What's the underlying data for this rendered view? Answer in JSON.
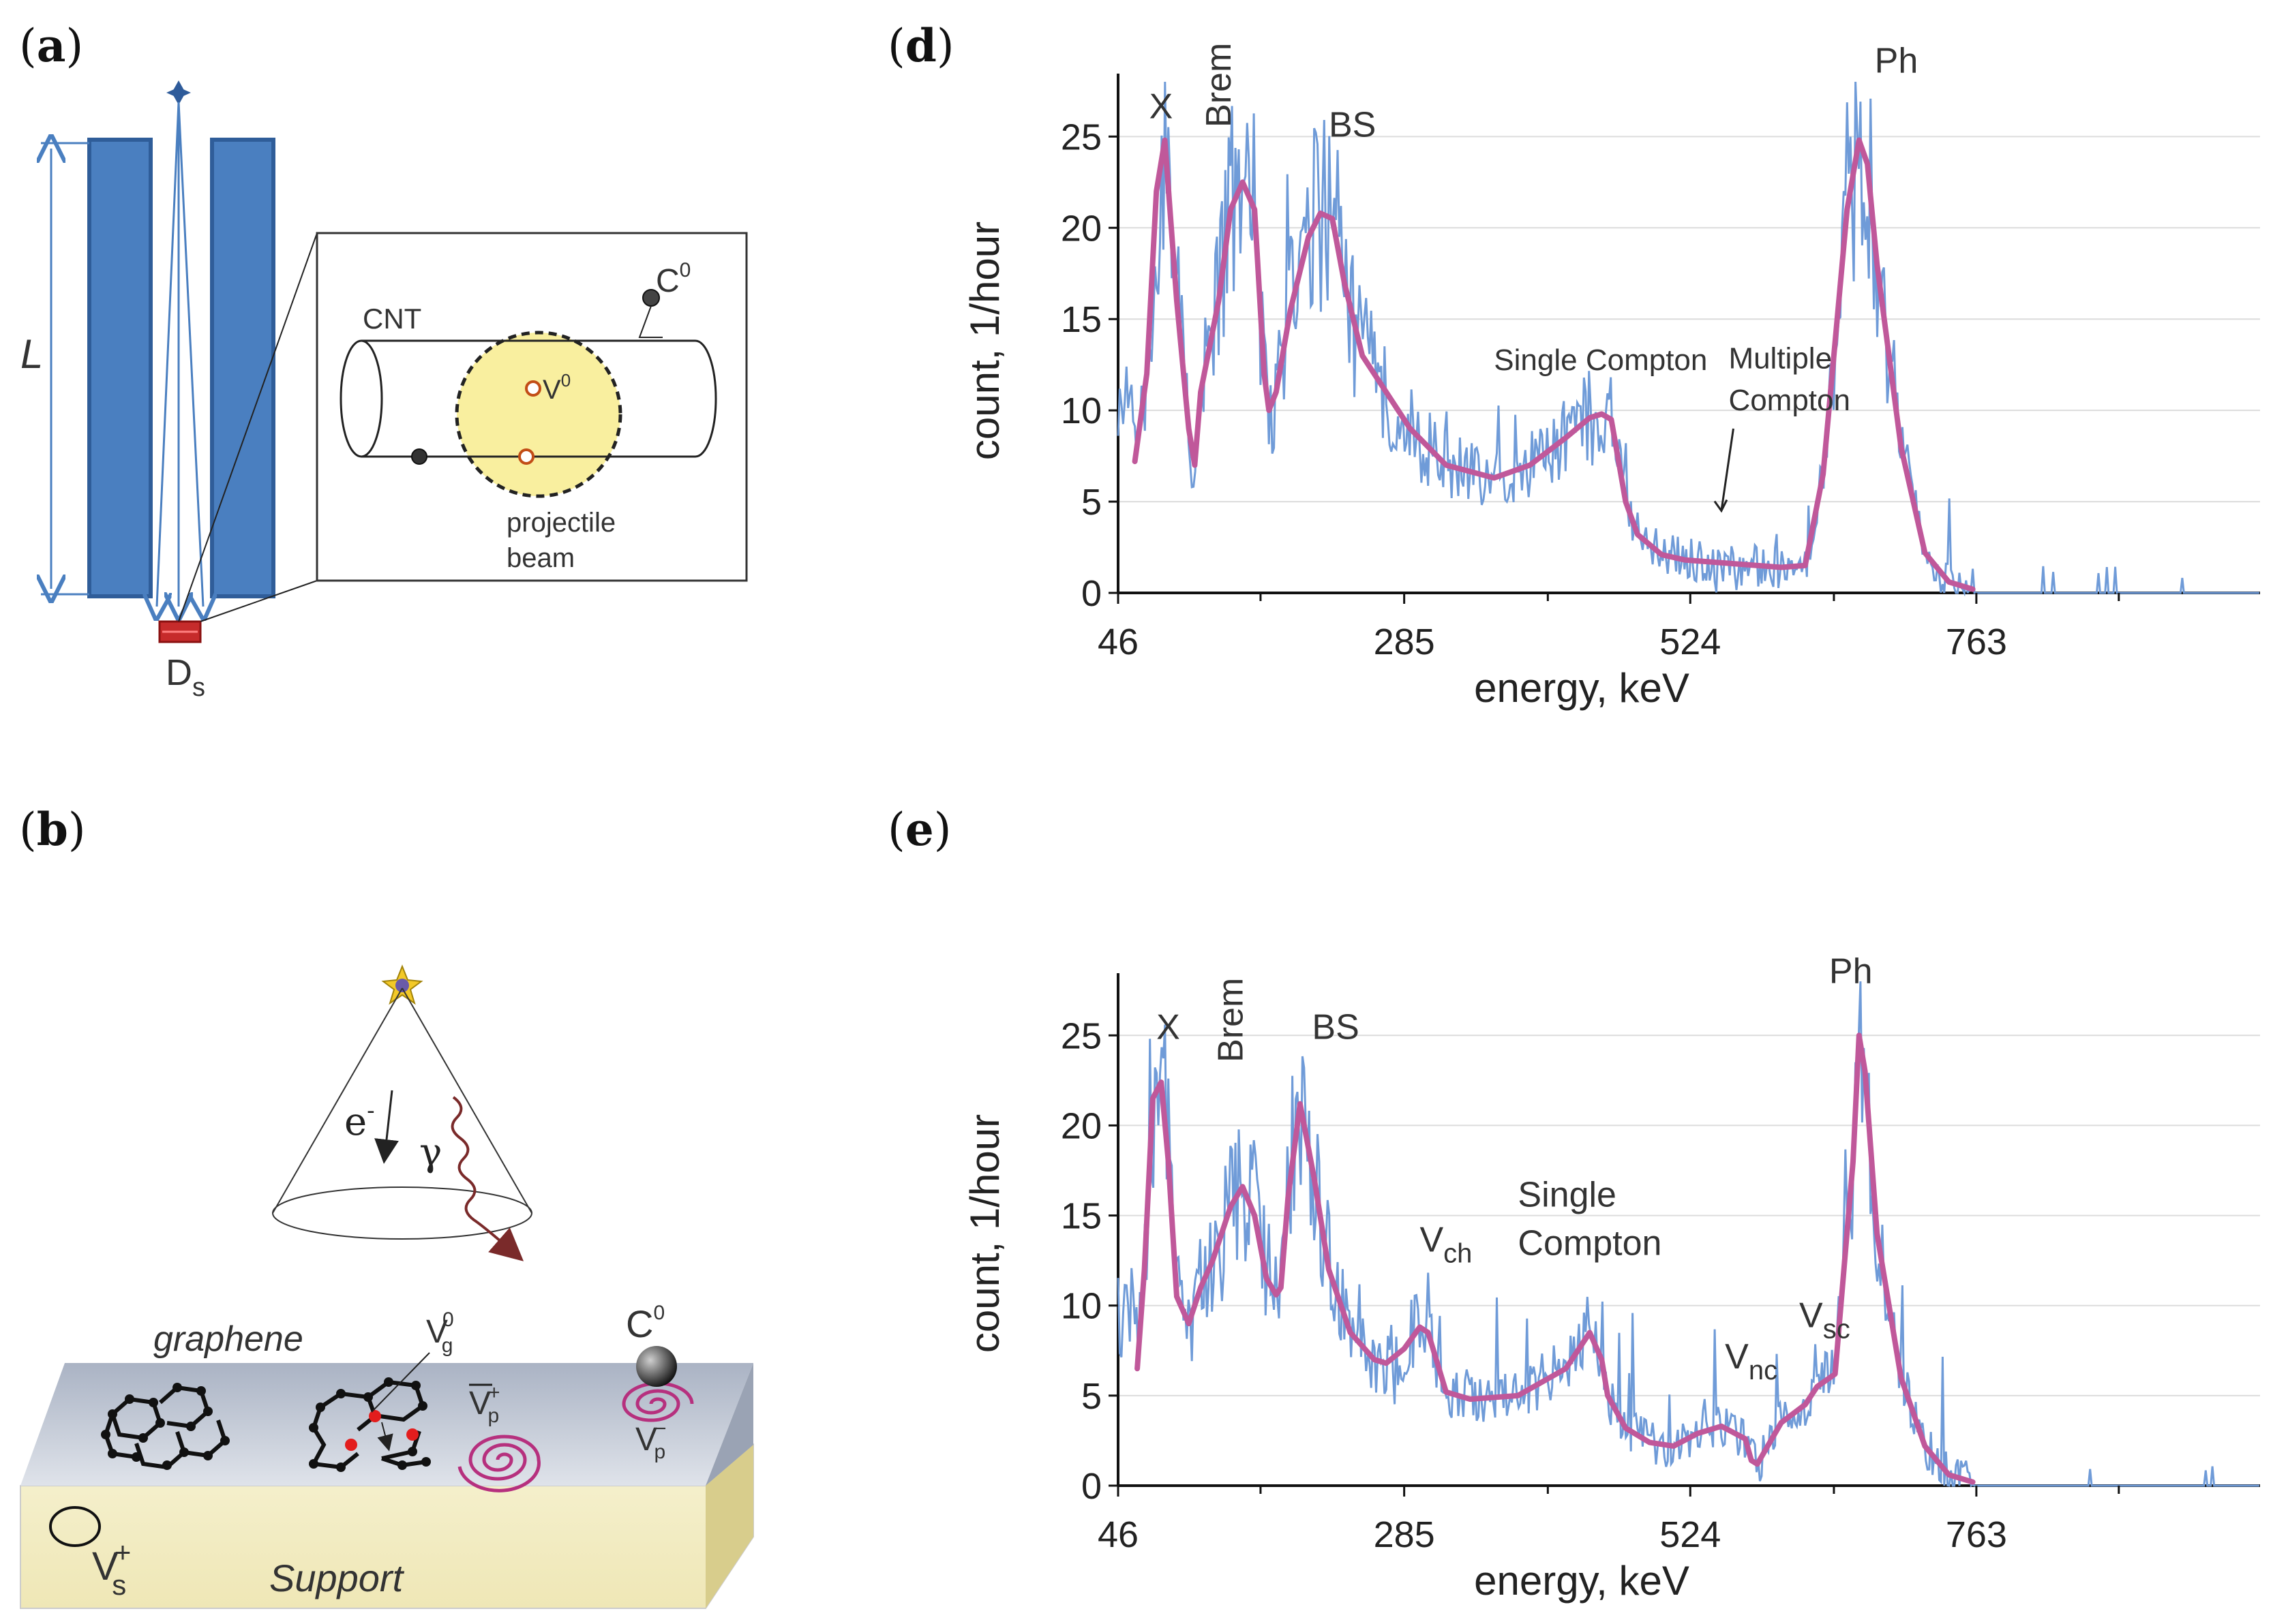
{
  "panels": {
    "a": {
      "letter": "a",
      "L_label": "L",
      "detector_label": "D",
      "detector_sub": "s",
      "cnt_label": "CNT",
      "c0_label": "C",
      "c0_sup": "0",
      "v0_label": "V",
      "v0_sup": "0",
      "beam_line1": "projectile",
      "beam_line2": "beam"
    },
    "b": {
      "letter": "b",
      "electron_label": "e",
      "electron_sup": "-",
      "gamma_label": "γ",
      "graphene_label": "graphene",
      "support_label": "Support",
      "vg_label": "V",
      "vg_sub": "g",
      "vg_sup": "0",
      "vp_plus_label": "V",
      "vp_plus_sub": "p",
      "vp_plus_sup": "+",
      "vp_minus_label": "V",
      "vp_minus_sub": "p",
      "vp_minus_sup": "−",
      "c0_label": "C",
      "c0_sup": "0",
      "vs_label": "V",
      "vs_sub": "s",
      "vs_sup": "+"
    },
    "d": {
      "letter": "d"
    },
    "e": {
      "letter": "e"
    }
  },
  "chart_data": [
    {
      "id": "d",
      "type": "line",
      "xlabel": "energy, keV",
      "ylabel": "count, 1/hour",
      "xlim": [
        46,
        1000
      ],
      "ylim": [
        0,
        28
      ],
      "xticks": [
        46,
        285,
        524,
        763
      ],
      "yticks": [
        0,
        5,
        10,
        15,
        20,
        25
      ],
      "grid": true,
      "series": [
        {
          "name": "raw spectrum",
          "color": "#6f9bd8",
          "style": "noisy"
        },
        {
          "name": "smoothed fit",
          "color": "#c0589a",
          "x": [
            60,
            70,
            78,
            85,
            95,
            105,
            110,
            115,
            130,
            140,
            150,
            160,
            168,
            172,
            178,
            190,
            205,
            215,
            225,
            235,
            250,
            270,
            290,
            320,
            360,
            390,
            420,
            440,
            450,
            458,
            462,
            470,
            480,
            500,
            520,
            560,
            600,
            620,
            635,
            655,
            665,
            672,
            680,
            700,
            720,
            740,
            760
          ],
          "y": [
            7.2,
            12,
            22,
            24.8,
            16,
            9,
            7,
            11,
            16,
            21,
            22.5,
            21,
            12,
            10,
            11,
            15.5,
            19.5,
            20.8,
            20.5,
            17,
            13,
            11,
            9,
            7,
            6.3,
            7,
            8.5,
            9.6,
            9.8,
            9.5,
            8,
            5,
            3.2,
            2.1,
            1.8,
            1.6,
            1.4,
            1.5,
            6.5,
            21,
            24.8,
            23.5,
            18,
            8,
            2.2,
            0.6,
            0.2
          ]
        }
      ],
      "annotations": [
        {
          "text": "X",
          "x": 72,
          "y": 26
        },
        {
          "text": "Brem",
          "x": 140,
          "y": 25.5,
          "rotate": -90
        },
        {
          "text": "BS",
          "x": 222,
          "y": 25
        },
        {
          "text": "Single Compton",
          "x": 360,
          "y": 12.2
        },
        {
          "text": "Multiple",
          "x": 556,
          "y": 12.3
        },
        {
          "text": "Compton",
          "x": 556,
          "y": 10.0
        },
        {
          "text": "Ph",
          "x": 678,
          "y": 28.5
        }
      ],
      "arrows": [
        {
          "from": [
            560,
            9.0
          ],
          "to": [
            550,
            4.5
          ]
        }
      ]
    },
    {
      "id": "e",
      "type": "line",
      "xlabel": "energy, keV",
      "ylabel": "count, 1/hour",
      "xlim": [
        46,
        1000
      ],
      "ylim": [
        0,
        28
      ],
      "xticks": [
        46,
        285,
        524,
        763
      ],
      "yticks": [
        0,
        5,
        10,
        15,
        20,
        25
      ],
      "grid": true,
      "series": [
        {
          "name": "raw spectrum",
          "color": "#6f9bd8",
          "style": "noisy"
        },
        {
          "name": "smoothed fit",
          "color": "#c0589a",
          "x": [
            62,
            68,
            75,
            82,
            88,
            95,
            105,
            115,
            125,
            140,
            150,
            160,
            170,
            178,
            182,
            188,
            198,
            210,
            222,
            240,
            260,
            270,
            285,
            298,
            305,
            320,
            340,
            380,
            420,
            440,
            450,
            455,
            470,
            490,
            510,
            530,
            550,
            570,
            575,
            580,
            600,
            620,
            630,
            645,
            660,
            665,
            670,
            680,
            700,
            720,
            740,
            760
          ],
          "y": [
            6.5,
            12,
            21.5,
            22.4,
            18,
            10.5,
            9,
            11,
            12.5,
            15.5,
            16.6,
            15,
            11.5,
            10.6,
            11,
            16,
            21.2,
            17,
            12,
            8.5,
            7,
            6.8,
            7.6,
            8.8,
            8.5,
            5.2,
            4.8,
            5,
            6.5,
            8.5,
            7,
            5,
            3.2,
            2.4,
            2.2,
            2.9,
            3.3,
            2.6,
            1.4,
            1.2,
            3.5,
            4.5,
            5.5,
            6.2,
            18,
            25,
            23,
            14,
            6,
            2.2,
            0.6,
            0.2
          ]
        }
      ],
      "annotations": [
        {
          "text": "X",
          "x": 78,
          "y": 24.8
        },
        {
          "text": "Brem",
          "x": 150,
          "y": 23.5,
          "rotate": -90
        },
        {
          "text": "BS",
          "x": 208,
          "y": 24.8
        },
        {
          "text": "V",
          "sub": "ch",
          "x": 298,
          "y": 13.0
        },
        {
          "text": "Single",
          "x": 380,
          "y": 15.5
        },
        {
          "text": "Compton",
          "x": 380,
          "y": 12.8
        },
        {
          "text": "V",
          "sub": "nc",
          "x": 553,
          "y": 6.5
        },
        {
          "text": "V",
          "sub": "sc",
          "x": 615,
          "y": 8.8
        },
        {
          "text": "Ph",
          "x": 640,
          "y": 27.9
        }
      ]
    }
  ]
}
